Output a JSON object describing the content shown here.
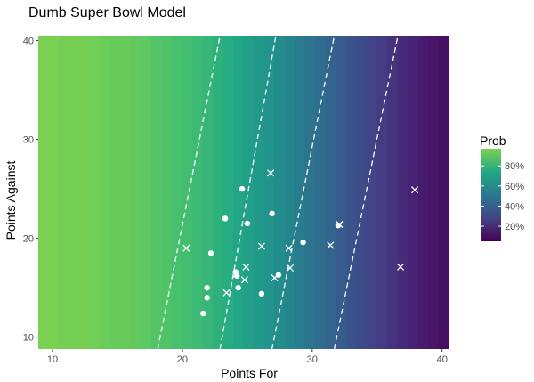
{
  "chart_data": {
    "type": "scatter",
    "title": "Dumb Super Bowl Model",
    "xlabel": "Points For",
    "ylabel": "Points Against",
    "xlim": [
      8.9,
      40.5
    ],
    "ylim": [
      8.8,
      40.5
    ],
    "x_ticks": [
      10,
      20,
      30,
      40
    ],
    "y_ticks": [
      10,
      20,
      30,
      40
    ],
    "background": {
      "type": "heatmap",
      "x_bin_start": 8.9,
      "x_bin_width": 0.79,
      "x_bins": 40,
      "probability": [
        0.97,
        0.97,
        0.96,
        0.96,
        0.96,
        0.95,
        0.94,
        0.93,
        0.93,
        0.92,
        0.91,
        0.89,
        0.88,
        0.86,
        0.85,
        0.83,
        0.81,
        0.78,
        0.76,
        0.73,
        0.7,
        0.67,
        0.64,
        0.6,
        0.57,
        0.53,
        0.49,
        0.46,
        0.42,
        0.38,
        0.35,
        0.31,
        0.28,
        0.25,
        0.22,
        0.19,
        0.16,
        0.14,
        0.12,
        0.1
      ]
    },
    "legend": {
      "title": "Prob",
      "position": "right",
      "labels": [
        "80%",
        "60%",
        "40%",
        "20%"
      ],
      "values": [
        0.8,
        0.6,
        0.4,
        0.2
      ],
      "range": [
        0.05,
        0.97
      ]
    },
    "contour_lines": [
      {
        "x": [
          18.1,
          22.9
        ],
        "y": [
          8.8,
          40.5
        ]
      },
      {
        "x": [
          22.9,
          27.2
        ],
        "y": [
          8.8,
          40.5
        ]
      },
      {
        "x": [
          26.9,
          31.7
        ],
        "y": [
          8.8,
          40.5
        ]
      },
      {
        "x": [
          31.7,
          36.6
        ],
        "y": [
          8.8,
          40.5
        ]
      }
    ],
    "series": [
      {
        "marker": "circle",
        "points": [
          [
            24.6,
            25.0
          ],
          [
            23.3,
            22.0
          ],
          [
            25.0,
            21.5
          ],
          [
            26.9,
            22.5
          ],
          [
            22.2,
            18.5
          ],
          [
            29.3,
            19.6
          ],
          [
            32.0,
            21.3
          ],
          [
            21.9,
            15.0
          ],
          [
            21.9,
            14.0
          ],
          [
            21.6,
            12.4
          ],
          [
            24.2,
            16.2
          ],
          [
            24.3,
            15.0
          ],
          [
            26.1,
            14.4
          ],
          [
            27.4,
            16.3
          ],
          [
            24.1,
            16.6
          ]
        ]
      },
      {
        "marker": "cross",
        "points": [
          [
            20.3,
            19.0
          ],
          [
            26.8,
            26.6
          ],
          [
            26.1,
            19.2
          ],
          [
            28.2,
            19.0
          ],
          [
            31.4,
            19.3
          ],
          [
            32.1,
            21.4
          ],
          [
            37.9,
            24.9
          ],
          [
            36.8,
            17.1
          ],
          [
            28.3,
            17.0
          ],
          [
            27.1,
            16.0
          ],
          [
            24.9,
            17.1
          ],
          [
            24.1,
            16.3
          ],
          [
            24.8,
            15.8
          ],
          [
            23.4,
            14.5
          ]
        ]
      }
    ]
  }
}
